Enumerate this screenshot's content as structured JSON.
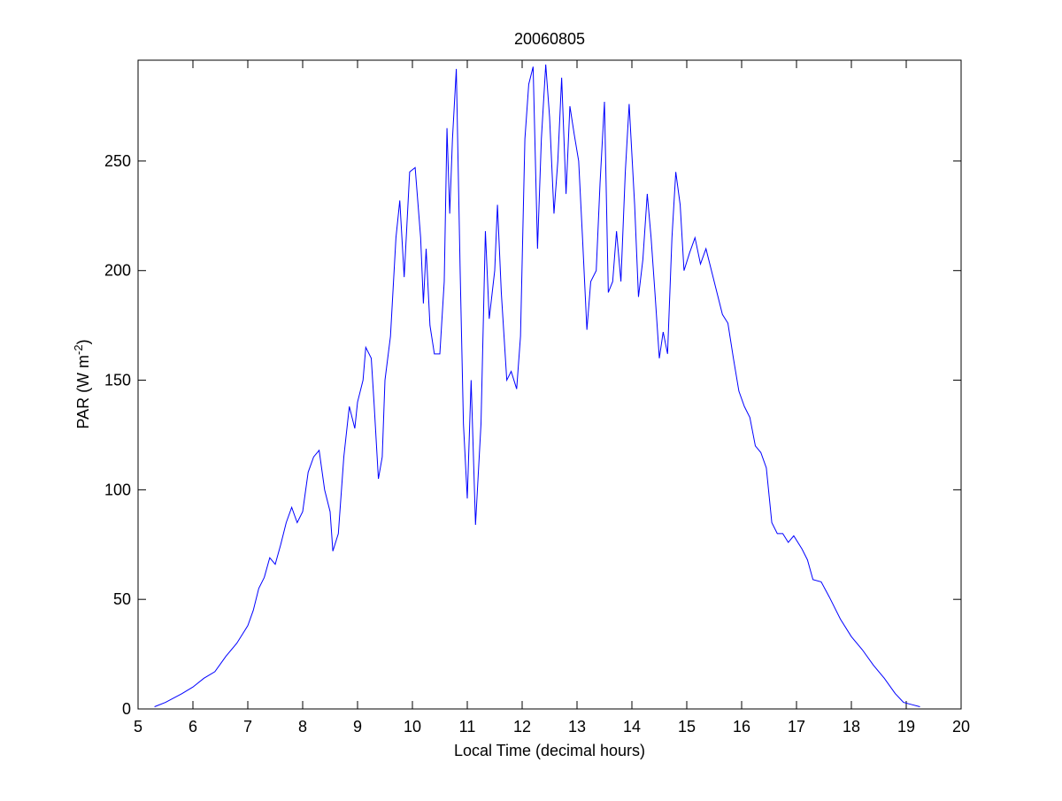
{
  "chart_data": {
    "type": "line",
    "title": "20060805",
    "xlabel": "Local Time (decimal hours)",
    "ylabel": [
      "PAR (W m",
      "-2",
      ")"
    ],
    "xlim": [
      5,
      20
    ],
    "ylim": [
      0,
      296
    ],
    "xticks": [
      5,
      6,
      7,
      8,
      9,
      10,
      11,
      12,
      13,
      14,
      15,
      16,
      17,
      18,
      19,
      20
    ],
    "yticks": [
      0,
      50,
      100,
      150,
      200,
      250
    ],
    "grid": false,
    "series": [
      {
        "color": "#0000ff",
        "x": [
          5.3,
          5.5,
          5.8,
          6.0,
          6.2,
          6.4,
          6.6,
          6.8,
          7.0,
          7.1,
          7.2,
          7.3,
          7.4,
          7.5,
          7.6,
          7.7,
          7.8,
          7.9,
          8.0,
          8.1,
          8.2,
          8.3,
          8.4,
          8.5,
          8.55,
          8.65,
          8.75,
          8.85,
          8.95,
          9.0,
          9.1,
          9.15,
          9.25,
          9.3,
          9.38,
          9.45,
          9.5,
          9.6,
          9.7,
          9.77,
          9.85,
          9.95,
          10.05,
          10.15,
          10.2,
          10.25,
          10.32,
          10.4,
          10.5,
          10.58,
          10.63,
          10.68,
          10.73,
          10.8,
          10.87,
          10.93,
          11.0,
          11.07,
          11.15,
          11.25,
          11.33,
          11.4,
          11.5,
          11.55,
          11.62,
          11.72,
          11.8,
          11.9,
          11.97,
          12.05,
          12.12,
          12.2,
          12.28,
          12.35,
          12.43,
          12.5,
          12.58,
          12.65,
          12.72,
          12.8,
          12.87,
          12.95,
          13.03,
          13.1,
          13.18,
          13.25,
          13.35,
          13.42,
          13.5,
          13.57,
          13.65,
          13.72,
          13.8,
          13.88,
          13.95,
          14.05,
          14.12,
          14.2,
          14.28,
          14.35,
          14.42,
          14.5,
          14.57,
          14.65,
          14.73,
          14.8,
          14.88,
          14.95,
          15.05,
          15.15,
          15.25,
          15.35,
          15.45,
          15.55,
          15.65,
          15.75,
          15.85,
          15.95,
          16.05,
          16.15,
          16.25,
          16.35,
          16.45,
          16.55,
          16.65,
          16.75,
          16.85,
          16.95,
          17.1,
          17.2,
          17.3,
          17.45,
          17.6,
          17.8,
          18.0,
          18.2,
          18.4,
          18.6,
          18.8,
          18.95,
          19.1,
          19.25
        ],
        "values": [
          1,
          3,
          7,
          10,
          14,
          17,
          24,
          30,
          38,
          45,
          55,
          60,
          69,
          66,
          75,
          85,
          92,
          85,
          90,
          108,
          115,
          118,
          100,
          90,
          72,
          80,
          115,
          138,
          128,
          140,
          150,
          165,
          160,
          140,
          105,
          115,
          150,
          170,
          215,
          232,
          197,
          245,
          247,
          215,
          185,
          210,
          175,
          162,
          162,
          195,
          265,
          226,
          260,
          292,
          200,
          130,
          96,
          150,
          84,
          130,
          218,
          178,
          200,
          230,
          190,
          150,
          154,
          146,
          170,
          260,
          285,
          293,
          210,
          260,
          294,
          270,
          226,
          250,
          288,
          235,
          275,
          262,
          250,
          215,
          173,
          195,
          200,
          240,
          277,
          190,
          195,
          218,
          195,
          245,
          276,
          230,
          188,
          205,
          235,
          215,
          190,
          160,
          172,
          162,
          215,
          245,
          230,
          200,
          208,
          215,
          203,
          210,
          200,
          190,
          180,
          176,
          160,
          145,
          138,
          133,
          120,
          117,
          110,
          85,
          80,
          80,
          76,
          79,
          73,
          68,
          59,
          58,
          51,
          41,
          33,
          27,
          20,
          14,
          7,
          3,
          2,
          1
        ]
      }
    ]
  }
}
